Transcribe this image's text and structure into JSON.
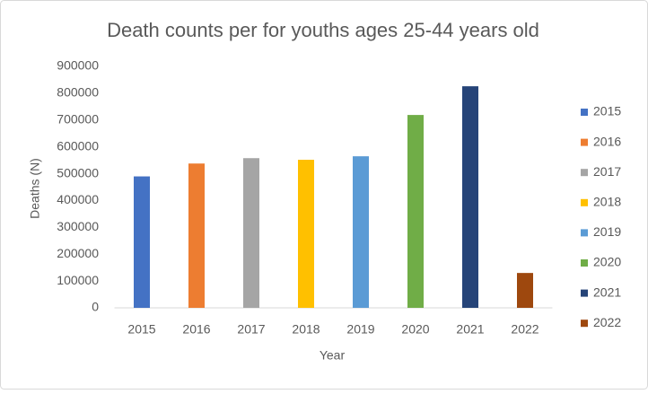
{
  "chart_data": {
    "type": "bar",
    "title": "Death counts per for youths ages 25-44 years old",
    "x_label": "Year",
    "y_label": "Deaths (N)",
    "categories": [
      "2015",
      "2016",
      "2017",
      "2018",
      "2019",
      "2020",
      "2021",
      "2022"
    ],
    "values": [
      490000,
      538000,
      558000,
      552000,
      565000,
      719000,
      826000,
      130000
    ],
    "colors": [
      "#4472c4",
      "#ed7d31",
      "#a5a5a5",
      "#ffc000",
      "#5b9bd5",
      "#70ad47",
      "#264478",
      "#9e480e"
    ],
    "ylim": [
      0,
      900000
    ],
    "yticks": [
      0,
      100000,
      200000,
      300000,
      400000,
      500000,
      600000,
      700000,
      800000,
      900000
    ],
    "grid": false,
    "legend": "right"
  }
}
